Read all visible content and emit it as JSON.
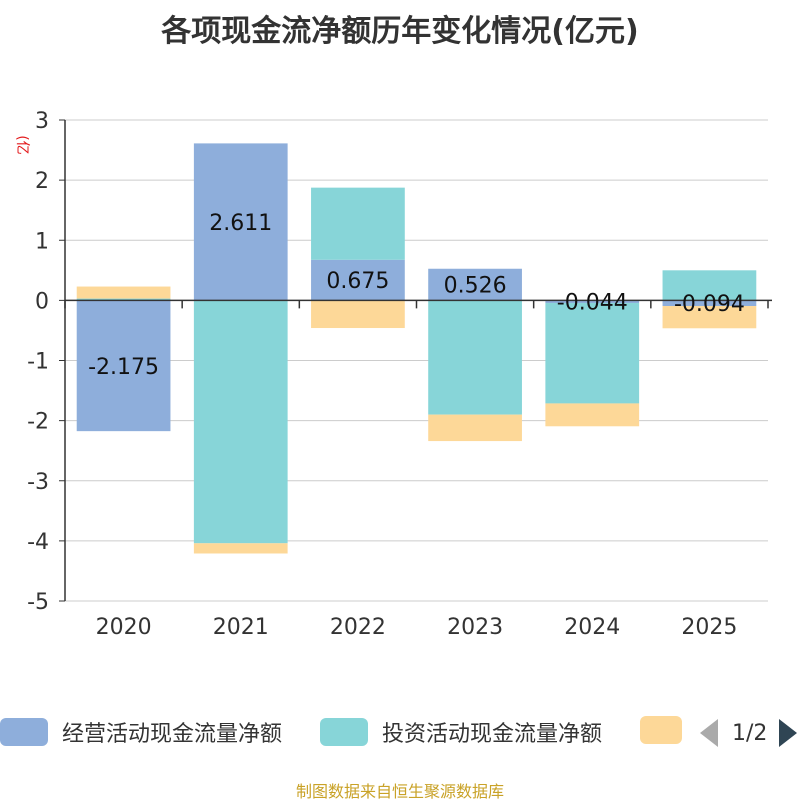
{
  "title": "各项现金流净额历年变化情况(亿元)",
  "unit_label": "(亿元)",
  "footer": "制图数据来自恒生聚源数据库",
  "legend": {
    "items": [
      {
        "label": "经营活动现金流量净额",
        "color": "#8eaedb"
      },
      {
        "label": "投资活动现金流量净额",
        "color": "#87d5d8"
      },
      {
        "label": "",
        "color": "#fdd898"
      }
    ],
    "page_text": "1/2"
  },
  "chart_data": {
    "type": "bar",
    "stacked": true,
    "categories": [
      "2020",
      "2021",
      "2022",
      "2023",
      "2024",
      "2025"
    ],
    "ylim": [
      -5,
      3
    ],
    "yticks": [
      3,
      2,
      1,
      0,
      -1,
      -2,
      -3,
      -4,
      -5
    ],
    "grid": true,
    "series": [
      {
        "name": "经营活动现金流量净额",
        "color": "#8eaedb",
        "values": [
          -2.175,
          2.611,
          0.675,
          0.526,
          -0.044,
          -0.094
        ],
        "labels": [
          "-2.175",
          "2.611",
          "0.675",
          "0.526",
          "-0.044",
          "-0.094"
        ]
      },
      {
        "name": "投资活动现金流量净额",
        "color": "#87d5d8",
        "values": [
          0.03,
          -4.04,
          1.2,
          -1.9,
          -1.67,
          0.5
        ]
      },
      {
        "name": "",
        "color": "#fdd898",
        "values": [
          0.2,
          -0.17,
          -0.46,
          -0.44,
          -0.38,
          -0.37
        ]
      }
    ]
  }
}
